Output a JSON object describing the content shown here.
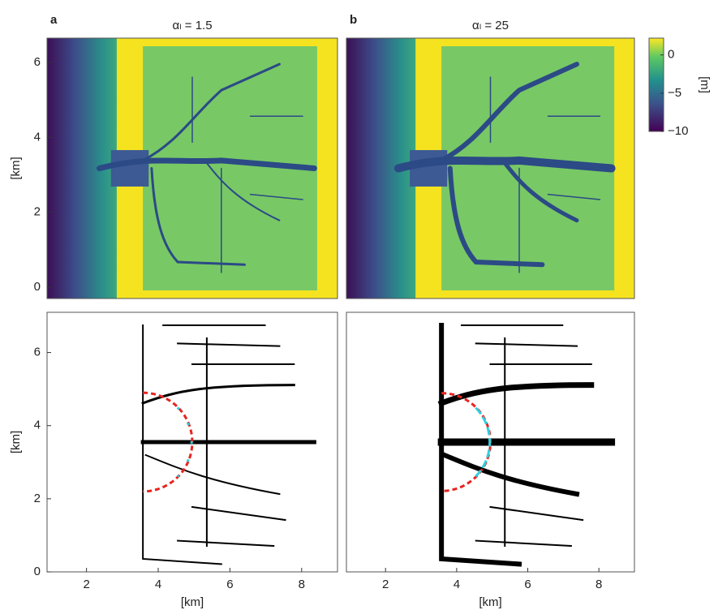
{
  "chart_data": [
    {
      "type": "heatmap",
      "panel_label": "a",
      "title": "αₗ = 1.5",
      "ylabel": "[km]",
      "ylim": [
        -0.3,
        6.65
      ],
      "yticks": [
        0,
        2,
        4,
        6
      ],
      "colorbar": {
        "label": "[m]",
        "lim": [
          -10,
          2.2
        ],
        "ticks": [
          0,
          {
            "value": -5,
            "label": "−5"
          },
          {
            "value": -10,
            "label": "−10"
          }
        ]
      }
    },
    {
      "type": "heatmap",
      "panel_label": "b",
      "title": "αₗ = 25",
      "ylim": [
        -0.3,
        6.65
      ]
    },
    {
      "type": "network",
      "xlabel": "[km]",
      "ylabel": "[km]",
      "xlim": [
        0.9,
        9
      ],
      "ylim": [
        0,
        7.1
      ],
      "xticks": [
        2,
        4,
        6,
        8
      ],
      "yticks": [
        0,
        2,
        4,
        6
      ]
    },
    {
      "type": "network",
      "xlabel": "[km]",
      "xlim": [
        0.9,
        9
      ],
      "ylim": [
        0,
        7.1
      ],
      "xticks": [
        2,
        4,
        6,
        8
      ]
    }
  ]
}
